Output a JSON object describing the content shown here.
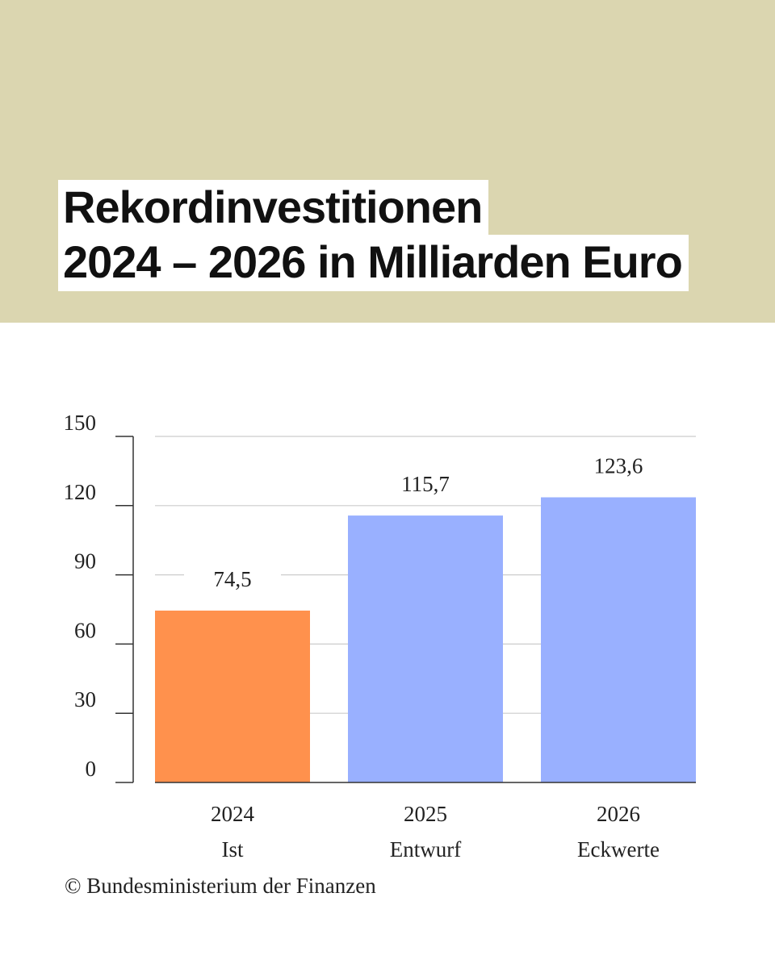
{
  "header": {
    "title_line1": "Rekordinvestitionen",
    "title_line2": "2024 – 2026 in Milliarden Euro"
  },
  "colors": {
    "header_background": "#dbd6b0",
    "actual_bar": "#ff914d",
    "planned_bar": "#99b0ff",
    "grid": "#cccccc",
    "axis": "#333333"
  },
  "chart_data": {
    "type": "bar",
    "categories": [
      "2024",
      "2025",
      "2026"
    ],
    "sublabels": [
      "Ist",
      "Entwurf",
      "Eckwerte"
    ],
    "values": [
      74.5,
      115.7,
      123.6
    ],
    "value_labels": [
      "74,5",
      "115,7",
      "123,6"
    ],
    "bar_colors": [
      "#ff914d",
      "#99b0ff",
      "#99b0ff"
    ],
    "ylim": [
      0,
      150
    ],
    "yticks": [
      0,
      30,
      60,
      90,
      120,
      150
    ],
    "grid": true,
    "title": "Rekordinvestitionen 2024 – 2026 in Milliarden Euro",
    "xlabel": "",
    "ylabel": ""
  },
  "footer": {
    "source": "© Bundesministerium der Finanzen"
  }
}
